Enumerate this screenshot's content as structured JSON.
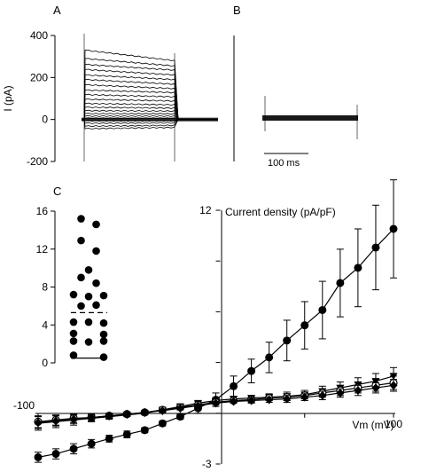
{
  "panels": {
    "a_label": "A",
    "b_label": "B",
    "c_label": "C"
  },
  "colors": {
    "ink": "#000000",
    "background": "#ffffff"
  },
  "chart_data": [
    {
      "id": "A",
      "type": "line",
      "ylabel": "I (pA)",
      "ylim": [
        -200,
        400
      ],
      "yticks": [
        -200,
        0,
        200,
        400
      ],
      "ytick_labels": [
        "-200",
        "0",
        "200",
        "400"
      ],
      "step_start_level": [
        330,
        290,
        262,
        238,
        212,
        190,
        165,
        140,
        118,
        96,
        76,
        58,
        42,
        28,
        16,
        6,
        -6,
        -18,
        -32,
        -44
      ],
      "step_end_level": [
        280,
        255,
        235,
        212,
        190,
        168,
        147,
        128,
        108,
        88,
        70,
        54,
        40,
        27,
        16,
        6,
        -6,
        -16,
        -28,
        -38
      ]
    },
    {
      "id": "B",
      "type": "line",
      "scale_bar_label": "100 ms"
    },
    {
      "id": "C-inset",
      "type": "scatter",
      "ylim": [
        0,
        16
      ],
      "yticks": [
        0,
        4,
        8,
        12,
        16
      ],
      "ytick_labels": [
        "0",
        "4",
        "8",
        "12",
        "16"
      ],
      "points": [
        {
          "x": -1,
          "y": 15.2
        },
        {
          "x": 1,
          "y": 14.6
        },
        {
          "x": -1,
          "y": 12.9
        },
        {
          "x": 1,
          "y": 11.8
        },
        {
          "x": 0,
          "y": 9.8
        },
        {
          "x": -1,
          "y": 9.0
        },
        {
          "x": 1,
          "y": 8.4
        },
        {
          "x": -2,
          "y": 7.2
        },
        {
          "x": 0,
          "y": 7.0
        },
        {
          "x": 2,
          "y": 7.1
        },
        {
          "x": -1,
          "y": 6.0
        },
        {
          "x": 1,
          "y": 6.1
        },
        {
          "x": -2,
          "y": 4.3
        },
        {
          "x": 0,
          "y": 4.3
        },
        {
          "x": 2,
          "y": 4.2
        },
        {
          "x": -2,
          "y": 3.1
        },
        {
          "x": 2,
          "y": 3.0
        },
        {
          "x": -2,
          "y": 2.3
        },
        {
          "x": 0,
          "y": 2.2
        },
        {
          "x": 2,
          "y": 2.3
        },
        {
          "x": -2,
          "y": 0.8
        },
        {
          "x": 2,
          "y": 0.6
        }
      ],
      "mean": 5.3,
      "min_line": 0.5
    },
    {
      "id": "C-main",
      "type": "line",
      "title": "Current density (pA/pF)",
      "xlabel": "Vm (mV)",
      "xlim": [
        -100,
        100
      ],
      "ylim": [
        -3,
        12
      ],
      "x_tick_labels": [
        {
          "x": -100,
          "label": "-100"
        },
        {
          "x": 100,
          "label": "100"
        }
      ],
      "y_tick_labels": [
        {
          "y": 12,
          "label": "12"
        },
        {
          "y": -3,
          "label": "-3"
        }
      ],
      "x": [
        -100,
        -90,
        -80,
        -70,
        -60,
        -50,
        -40,
        -30,
        -20,
        -10,
        0,
        10,
        20,
        30,
        40,
        50,
        60,
        70,
        80,
        90,
        100
      ],
      "series": [
        {
          "marker": "circle",
          "values": [
            -2.6,
            -2.4,
            -2.1,
            -1.8,
            -1.5,
            -1.25,
            -1.0,
            -0.6,
            -0.2,
            0.3,
            0.8,
            1.6,
            2.5,
            3.3,
            4.3,
            5.2,
            6.1,
            7.7,
            8.6,
            9.8,
            10.9
          ],
          "err": [
            0.3,
            0.3,
            0.3,
            0.25,
            0.2,
            0.2,
            0.15,
            0.15,
            0.15,
            0.3,
            0.4,
            0.6,
            0.7,
            0.9,
            1.2,
            1.4,
            1.7,
            2.0,
            2.3,
            2.5,
            2.9
          ]
        },
        {
          "marker": "triangle-down",
          "values": [
            -0.6,
            -0.5,
            -0.4,
            -0.3,
            -0.2,
            -0.1,
            0.0,
            0.2,
            0.4,
            0.6,
            0.75,
            0.85,
            0.9,
            0.95,
            1.0,
            1.1,
            1.3,
            1.5,
            1.7,
            1.9,
            2.2
          ],
          "err": [
            0.4,
            0.35,
            0.3,
            0.2,
            0.15,
            0.1,
            0.1,
            0.1,
            0.1,
            0.1,
            0.1,
            0.15,
            0.15,
            0.2,
            0.25,
            0.25,
            0.3,
            0.35,
            0.4,
            0.45,
            0.5
          ]
        },
        {
          "marker": "circle-open",
          "values": [
            -0.5,
            -0.4,
            -0.3,
            -0.25,
            -0.15,
            -0.05,
            0.05,
            0.2,
            0.35,
            0.5,
            0.65,
            0.75,
            0.8,
            0.9,
            0.95,
            1.05,
            1.2,
            1.35,
            1.5,
            1.65,
            1.8
          ],
          "err": [
            0.35,
            0.3,
            0.25,
            0.2,
            0.15,
            0.1,
            0.1,
            0.1,
            0.1,
            0.1,
            0.1,
            0.1,
            0.15,
            0.15,
            0.2,
            0.2,
            0.25,
            0.3,
            0.3,
            0.35,
            0.4
          ]
        },
        {
          "marker": "diamond",
          "values": [
            -0.55,
            -0.45,
            -0.35,
            -0.25,
            -0.15,
            -0.05,
            0.05,
            0.15,
            0.3,
            0.45,
            0.6,
            0.7,
            0.75,
            0.8,
            0.85,
            0.95,
            1.05,
            1.2,
            1.35,
            1.5,
            1.65
          ],
          "err": [
            0.35,
            0.3,
            0.25,
            0.2,
            0.15,
            0.1,
            0.1,
            0.1,
            0.1,
            0.1,
            0.1,
            0.1,
            0.15,
            0.15,
            0.2,
            0.2,
            0.25,
            0.25,
            0.3,
            0.3,
            0.35
          ]
        }
      ]
    }
  ]
}
